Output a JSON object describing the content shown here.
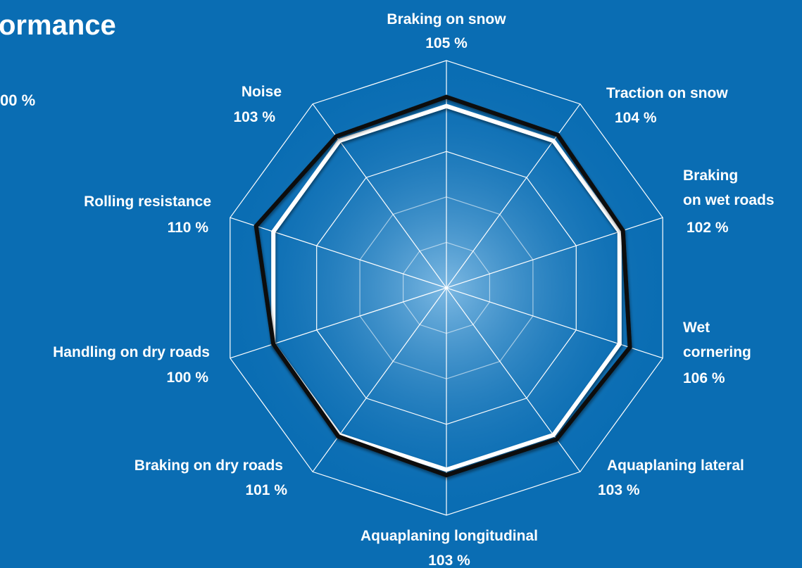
{
  "title": "ormance",
  "baseline_label": "00 %",
  "colors": {
    "background": "#0a6db3",
    "grid": "#ffffff",
    "reference_series": "#ffffff",
    "tyre_series": "#111111",
    "center_glow": "#6fb2e0"
  },
  "chart_data": {
    "type": "radar",
    "title": "",
    "grid": true,
    "rmin": 0,
    "rmax": 125,
    "grid_levels": [
      25,
      50,
      75,
      100,
      125
    ],
    "axes": [
      {
        "name": "Braking on snow",
        "value_label": "105 %"
      },
      {
        "name": "Traction on snow",
        "value_label": "104 %"
      },
      {
        "name": "Braking on wet roads",
        "value_label": "102 %"
      },
      {
        "name": "Wet cornering",
        "value_label": "106 %"
      },
      {
        "name": "Aquaplaning lateral",
        "value_label": "103 %"
      },
      {
        "name": "Aquaplaning longitudinal",
        "value_label": "103 %"
      },
      {
        "name": "Braking on dry roads",
        "value_label": "101 %"
      },
      {
        "name": "Handling on dry roads",
        "value_label": "100 %"
      },
      {
        "name": "Rolling resistance",
        "value_label": "110 %"
      },
      {
        "name": "Noise",
        "value_label": "103 %"
      }
    ],
    "series": [
      {
        "values": [
          100,
          100,
          100,
          100,
          100,
          100,
          100,
          100,
          100,
          100
        ],
        "color": "#ffffff"
      },
      {
        "values": [
          105,
          104,
          102,
          106,
          103,
          103,
          101,
          100,
          110,
          103
        ],
        "color": "#111111"
      }
    ]
  }
}
